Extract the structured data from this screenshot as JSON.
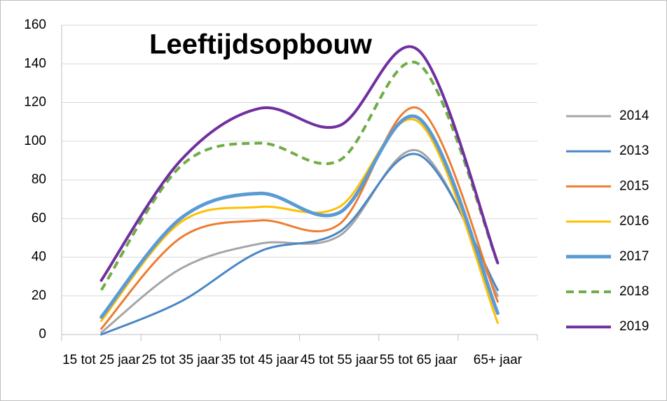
{
  "chart_data": {
    "type": "line",
    "title": "Leeftijdsopbouw",
    "categories": [
      "15 tot 25 jaar",
      "25 tot 35 jaar",
      "35 tot 45 jaar",
      "45 tot 55 jaar",
      "55 tot 65 jaar",
      "65+ jaar"
    ],
    "series": [
      {
        "name": "2014",
        "color": "#a5a5a5",
        "width": 3,
        "dash": false,
        "values": [
          1,
          34,
          47,
          51,
          95,
          20
        ]
      },
      {
        "name": "2013",
        "color": "#4a86c5",
        "width": 3,
        "dash": false,
        "values": [
          0,
          17,
          43,
          53,
          93,
          23
        ]
      },
      {
        "name": "2015",
        "color": "#ed7d31",
        "width": 3,
        "dash": false,
        "values": [
          3,
          50,
          59,
          57,
          117,
          17
        ]
      },
      {
        "name": "2016",
        "color": "#ffc000",
        "width": 3,
        "dash": false,
        "values": [
          7,
          58,
          66,
          66,
          110,
          6
        ]
      },
      {
        "name": "2017",
        "color": "#5b9bd5",
        "width": 5,
        "dash": false,
        "values": [
          9,
          60,
          73,
          63,
          112,
          11
        ]
      },
      {
        "name": "2018",
        "color": "#70ad47",
        "width": 4,
        "dash": true,
        "values": [
          23,
          87,
          99,
          90,
          140,
          37
        ]
      },
      {
        "name": "2019",
        "color": "#7030a0",
        "width": 4,
        "dash": false,
        "values": [
          28,
          90,
          117,
          108,
          147,
          37
        ]
      }
    ],
    "smooth": true,
    "ylim": [
      0,
      160
    ],
    "yticks": [
      0,
      20,
      40,
      60,
      80,
      100,
      120,
      140,
      160
    ],
    "grid": true,
    "legend": "right"
  }
}
